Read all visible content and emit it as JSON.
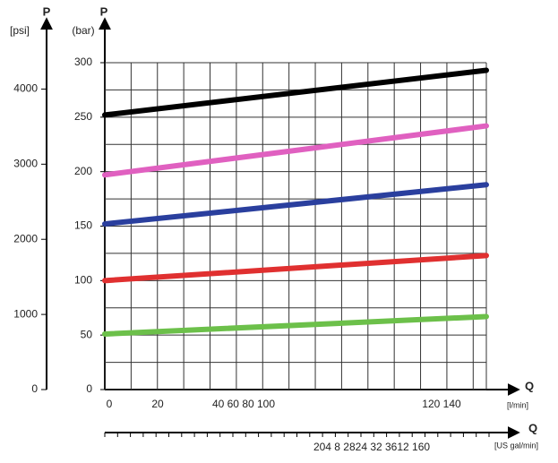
{
  "chart_data": {
    "type": "line",
    "y_axis_label": "P",
    "y_axis_unit": "(bar)",
    "y2_axis_label": "P",
    "y2_axis_unit": "[psi]",
    "x_axis_label": "Q",
    "x_axis_unit": "[l/min]",
    "x2_axis_label": "Q",
    "x2_axis_unit": "[US gal/min]",
    "x": [
      0,
      145
    ],
    "series": [
      {
        "color": "#000000",
        "values": [
          252,
          293
        ]
      },
      {
        "color": "#e060c0",
        "values": [
          197,
          242
        ]
      },
      {
        "color": "#2a3f9e",
        "values": [
          152,
          188
        ]
      },
      {
        "color": "#e03030",
        "values": [
          100,
          123
        ]
      },
      {
        "color": "#6cc04a",
        "values": [
          51,
          67
        ]
      }
    ],
    "xlim": [
      0,
      145
    ],
    "ylim": [
      0,
      300
    ],
    "yticks": [
      0,
      50,
      100,
      150,
      200,
      250,
      300
    ],
    "y2lim": [
      0,
      4351
    ],
    "y2ticks": [
      0,
      1000,
      2000,
      3000,
      4000
    ],
    "xtick_labels": [
      "0",
      "20",
      "40 60 80 100",
      "120 140"
    ],
    "x2tick_labels": "204 8 2824 32 3612 160",
    "xgrid": [
      0,
      10,
      20,
      30,
      40,
      50,
      60,
      70,
      80,
      90,
      100,
      110,
      120,
      130,
      140,
      145
    ],
    "ygrid": [
      0,
      25,
      50,
      75,
      100,
      125,
      150,
      175,
      200,
      225,
      250,
      275,
      300
    ],
    "grid": true
  }
}
